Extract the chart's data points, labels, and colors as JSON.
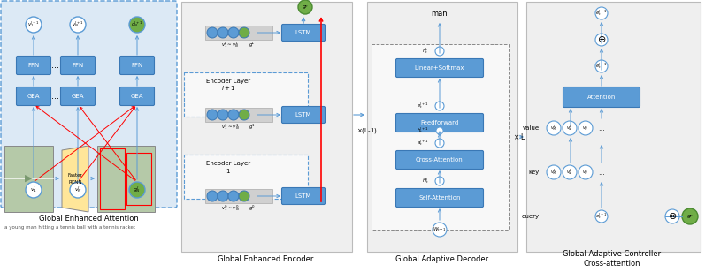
{
  "bg_color": "#ffffff",
  "light_blue_fill": "#dce9f5",
  "blue_box": "#5b9bd5",
  "green_circle": "#70ad47",
  "light_gray": "#efefef",
  "white": "#ffffff",
  "red": "#ff0000",
  "section_labels": [
    "Global Enhanced Attention",
    "Global Enhanced Encoder",
    "Global Adaptive Decoder",
    "Global Adaptive Controller\nCross-attention"
  ],
  "caption": "a young man hitting a tennis ball with a tennis racket"
}
